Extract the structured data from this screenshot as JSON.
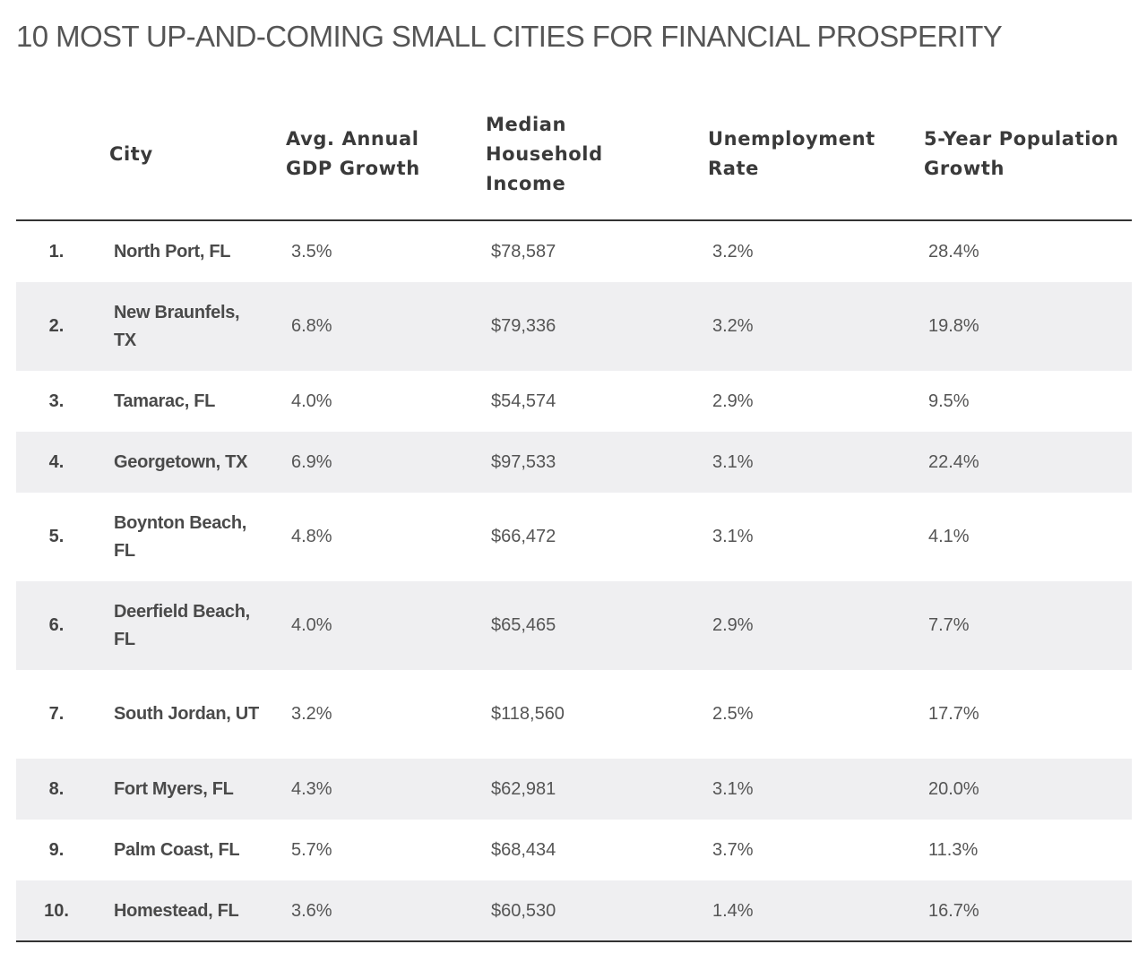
{
  "title": "10 MOST UP-AND-COMING SMALL CITIES FOR FINANCIAL PROSPERITY",
  "chart_data": {
    "type": "table",
    "title": "10 MOST UP-AND-COMING SMALL CITIES FOR FINANCIAL PROSPERITY",
    "columns": [
      "",
      "City",
      "Avg. Annual GDP Growth",
      "Median Household Income",
      "Unemployment Rate",
      "5-Year Population Growth"
    ],
    "rows": [
      [
        "1.",
        "North Port, FL",
        "3.5%",
        "$78,587",
        "3.2%",
        "28.4%"
      ],
      [
        "2.",
        "New Braunfels, TX",
        "6.8%",
        "$79,336",
        "3.2%",
        "19.8%"
      ],
      [
        "3.",
        "Tamarac, FL",
        "4.0%",
        "$54,574",
        "2.9%",
        "9.5%"
      ],
      [
        "4.",
        "Georgetown, TX",
        "6.9%",
        "$97,533",
        "3.1%",
        "22.4%"
      ],
      [
        "5.",
        "Boynton Beach, FL",
        "4.8%",
        "$66,472",
        "3.1%",
        "4.1%"
      ],
      [
        "6.",
        "Deerfield Beach, FL",
        "4.0%",
        "$65,465",
        "2.9%",
        "7.7%"
      ],
      [
        "7.",
        "South Jordan, UT",
        "3.2%",
        "$118,560",
        "2.5%",
        "17.7%"
      ],
      [
        "8.",
        "Fort Myers, FL",
        "4.3%",
        "$62,981",
        "3.1%",
        "20.0%"
      ],
      [
        "9.",
        "Palm Coast, FL",
        "5.7%",
        "$68,434",
        "3.7%",
        "11.3%"
      ],
      [
        "10.",
        "Homestead, FL",
        "3.6%",
        "$60,530",
        "1.4%",
        "16.7%"
      ]
    ],
    "colors": {
      "stripe": "#efeff1",
      "rule": "#333333",
      "text": "#555555"
    }
  }
}
